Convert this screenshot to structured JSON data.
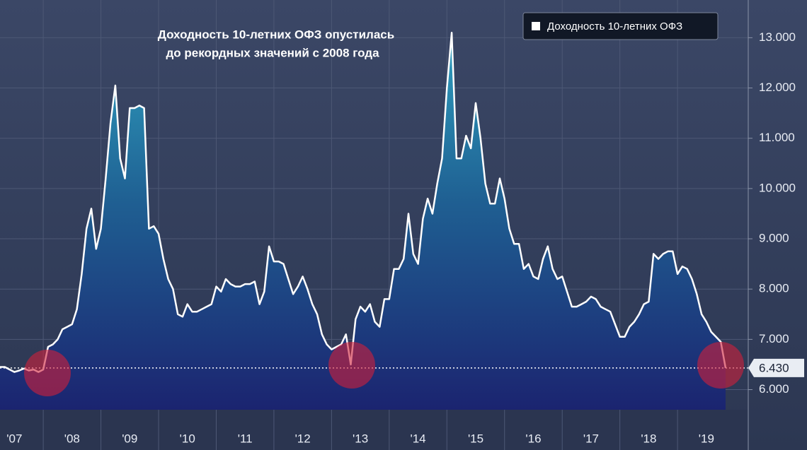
{
  "chart_data": {
    "type": "area-line",
    "title": [
      "Доходность 10-летних ОФЗ опустилась",
      "до рекордных значений с 2008 года"
    ],
    "categories": [
      null,
      null,
      null,
      "'07",
      null,
      null,
      null,
      null,
      null,
      null,
      null,
      null,
      null,
      null,
      null,
      "'08",
      null,
      null,
      null,
      null,
      null,
      null,
      null,
      null,
      null,
      null,
      null,
      "'09",
      null,
      null,
      null,
      null,
      null,
      null,
      null,
      null,
      null,
      null,
      null,
      "'10",
      null,
      null,
      null,
      null,
      null,
      null,
      null,
      null,
      null,
      null,
      null,
      "'11",
      null,
      null,
      null,
      null,
      null,
      null,
      null,
      null,
      null,
      null,
      null,
      "'12",
      null,
      null,
      null,
      null,
      null,
      null,
      null,
      null,
      null,
      null,
      null,
      "'13",
      null,
      null,
      null,
      null,
      null,
      null,
      null,
      null,
      null,
      null,
      null,
      "'14",
      null,
      null,
      null,
      null,
      null,
      null,
      null,
      null,
      null,
      null,
      null,
      "'15",
      null,
      null,
      null,
      null,
      null,
      null,
      null,
      null,
      null,
      null,
      null,
      "'16",
      null,
      null,
      null,
      null,
      null,
      null,
      null,
      null,
      null,
      null,
      null,
      "'17",
      null,
      null,
      null,
      null,
      null,
      null,
      null,
      null,
      null,
      null,
      null,
      "'18",
      null,
      null,
      null,
      null,
      null,
      null,
      null,
      null,
      null,
      null,
      null,
      "'19",
      null,
      null,
      null,
      null
    ],
    "series": [
      {
        "name": "Доходность 10-летних ОФЗ",
        "color": "#ffffff",
        "values": [
          6.45,
          6.45,
          6.4,
          6.35,
          6.38,
          6.42,
          6.38,
          6.4,
          6.35,
          6.4,
          6.85,
          6.9,
          7.0,
          7.2,
          7.25,
          7.3,
          7.6,
          8.3,
          9.2,
          9.6,
          8.8,
          9.2,
          10.2,
          11.3,
          12.05,
          10.6,
          10.2,
          11.6,
          11.6,
          11.65,
          11.6,
          9.2,
          9.25,
          9.1,
          8.6,
          8.2,
          8.0,
          7.5,
          7.45,
          7.7,
          7.55,
          7.55,
          7.6,
          7.65,
          7.7,
          8.05,
          7.95,
          8.2,
          8.1,
          8.05,
          8.05,
          8.1,
          8.1,
          8.15,
          7.7,
          7.95,
          8.85,
          8.55,
          8.55,
          8.5,
          8.2,
          7.9,
          8.05,
          8.25,
          8.0,
          7.7,
          7.5,
          7.1,
          6.9,
          6.8,
          6.85,
          6.9,
          7.1,
          6.5,
          7.4,
          7.65,
          7.55,
          7.7,
          7.35,
          7.25,
          7.8,
          7.8,
          8.4,
          8.4,
          8.6,
          9.5,
          8.7,
          8.5,
          9.4,
          9.8,
          9.5,
          10.1,
          10.6,
          12.0,
          13.1,
          10.6,
          10.6,
          11.05,
          10.8,
          11.7,
          11.0,
          10.1,
          9.7,
          9.7,
          10.2,
          9.8,
          9.2,
          8.9,
          8.9,
          8.4,
          8.5,
          8.25,
          8.2,
          8.6,
          8.85,
          8.4,
          8.2,
          8.25,
          7.95,
          7.65,
          7.65,
          7.7,
          7.75,
          7.85,
          7.8,
          7.65,
          7.6,
          7.55,
          7.3,
          7.05,
          7.05,
          7.25,
          7.35,
          7.5,
          7.7,
          7.75,
          8.7,
          8.6,
          8.7,
          8.75,
          8.75,
          8.3,
          8.45,
          8.4,
          8.2,
          7.9,
          7.5,
          7.35,
          7.15,
          7.05,
          6.95,
          6.43
        ]
      }
    ],
    "last_value_label": "6.430",
    "ylim": [
      5.6,
      13.75
    ],
    "yticks": [
      {
        "value": 6,
        "label": "6.000"
      },
      {
        "value": 7,
        "label": "7.000"
      },
      {
        "value": 8,
        "label": "8.000"
      },
      {
        "value": 9,
        "label": "9.000"
      },
      {
        "value": 10,
        "label": "10.000"
      },
      {
        "value": 11,
        "label": "11.000"
      },
      {
        "value": 12,
        "label": "12.000"
      },
      {
        "value": 13,
        "label": "13.000"
      }
    ],
    "grid": true,
    "legend": "top-right"
  }
}
